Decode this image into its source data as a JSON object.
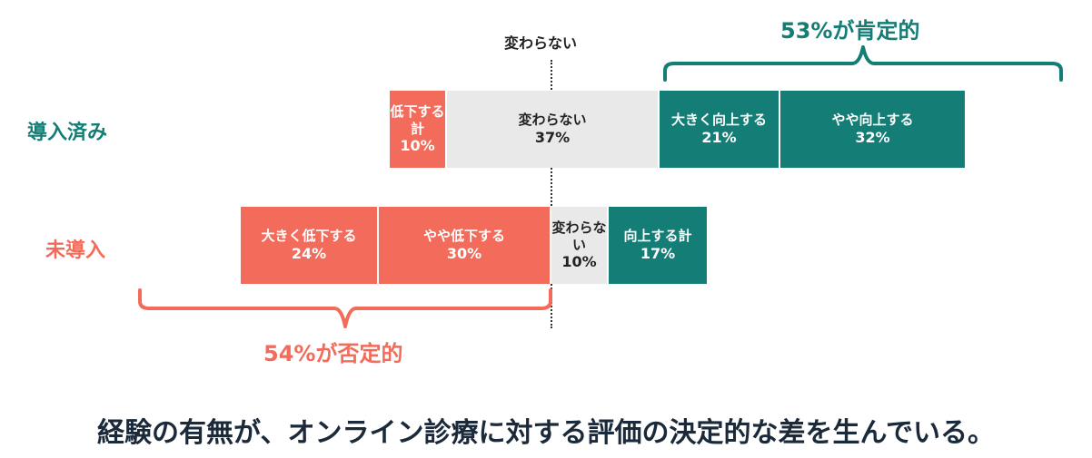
{
  "colors": {
    "negative": "#F26B5B",
    "neutral": "#E9E9E9",
    "positive": "#137D76",
    "row_implemented_label": "#137D76",
    "row_not_implemented_label": "#F26B5B",
    "footer_text": "#1B2A3A"
  },
  "neutral_marker_label": "変わらない",
  "chart_data": {
    "type": "bar",
    "orientation": "horizontal",
    "stacked": true,
    "unit": "%",
    "rows": [
      {
        "label": "導入済み",
        "segments": [
          {
            "label": "低下する計",
            "value": 10,
            "kind": "negative"
          },
          {
            "label": "変わらない",
            "value": 37,
            "kind": "neutral"
          },
          {
            "label": "大きく向上する",
            "value": 21,
            "kind": "positive"
          },
          {
            "label": "やや向上する",
            "value": 32,
            "kind": "positive"
          }
        ]
      },
      {
        "label": "未導入",
        "segments": [
          {
            "label": "大きく低下する",
            "value": 24,
            "kind": "negative"
          },
          {
            "label": "やや低下する",
            "value": 30,
            "kind": "negative"
          },
          {
            "label": "変わらない",
            "value": 10,
            "kind": "neutral"
          },
          {
            "label": "向上する計",
            "value": 17,
            "kind": "positive"
          }
        ]
      }
    ],
    "annotations": [
      {
        "text": "53%が肯定的",
        "row": "導入済み",
        "applies_to": "positive"
      },
      {
        "text": "54%が否定的",
        "row": "未導入",
        "applies_to": "negative"
      }
    ]
  },
  "footer": "経験の有無が、オンライン診療に対する評価の決定的な差を生んでいる。"
}
